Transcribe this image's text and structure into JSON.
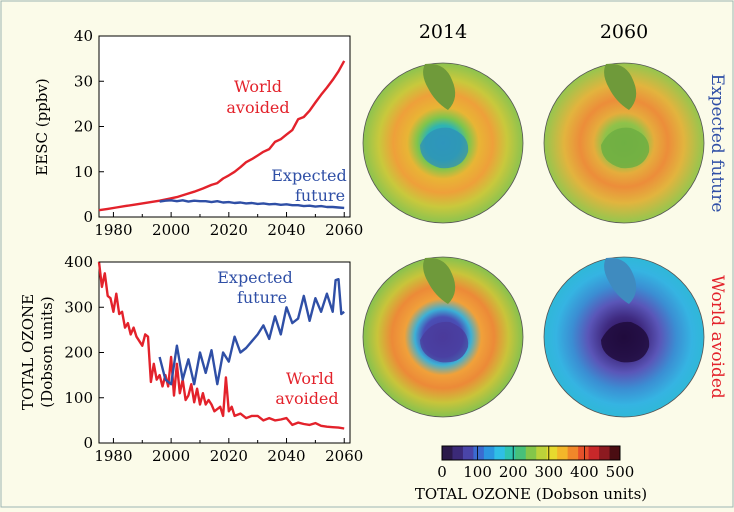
{
  "colors": {
    "background": "#fbfbe9",
    "world_avoided": "#e3222b",
    "expected_future": "#2f4fa6",
    "axis": "#000000"
  },
  "side_labels": {
    "expected_future": "Expected future",
    "world_avoided": "World avoided"
  },
  "map_years": [
    "2014",
    "2060"
  ],
  "colorbar": {
    "ticks": [
      "0",
      "100",
      "200",
      "300",
      "400",
      "500"
    ],
    "label": "TOTAL OZONE (Dobson units)",
    "colors": [
      "#2b1a4a",
      "#3b2a78",
      "#4a45a8",
      "#3b6bd0",
      "#2c96e0",
      "#2fbfe6",
      "#2fc4b0",
      "#47c07a",
      "#84c64a",
      "#bcd23a",
      "#e7da2e",
      "#f3b62a",
      "#f0872a",
      "#e6502a",
      "#c8282a",
      "#8c1a20",
      "#4a0d12"
    ]
  },
  "chart_data": [
    {
      "type": "line",
      "xlabel": "",
      "ylabel": "EESC (ppbv)",
      "xlim": [
        1975,
        2062
      ],
      "ylim": [
        0,
        40
      ],
      "xticks": [
        "1980",
        "2000",
        "2020",
        "2040",
        "2060"
      ],
      "yticks": [
        "0",
        "10",
        "20",
        "30",
        "40"
      ],
      "annotations": [
        {
          "text": "World",
          "series": "world_avoided"
        },
        {
          "text": "avoided",
          "series": "world_avoided"
        },
        {
          "text": "Expected",
          "series": "expected_future"
        },
        {
          "text": "future",
          "series": "expected_future"
        }
      ],
      "series": [
        {
          "name": "World avoided",
          "x": [
            1975,
            1978,
            1981,
            1984,
            1987,
            1990,
            1993,
            1996,
            1999,
            2002,
            2005,
            2008,
            2011,
            2014,
            2016,
            2018,
            2020,
            2022,
            2024,
            2026,
            2028,
            2030,
            2032,
            2034,
            2036,
            2038,
            2040,
            2042,
            2044,
            2046,
            2048,
            2050,
            2052,
            2054,
            2056,
            2058,
            2060
          ],
          "y": [
            1.5,
            1.8,
            2.1,
            2.4,
            2.7,
            3.0,
            3.3,
            3.6,
            4.0,
            4.4,
            5.0,
            5.6,
            6.3,
            7.1,
            7.5,
            8.5,
            9.2,
            10.0,
            11.0,
            12.1,
            12.8,
            13.6,
            14.4,
            15.0,
            16.6,
            17.2,
            18.2,
            19.2,
            21.6,
            22.1,
            23.5,
            25.3,
            27.0,
            28.6,
            30.3,
            32.2,
            34.5
          ]
        },
        {
          "name": "Expected future",
          "x": [
            1996,
            1998,
            2000,
            2002,
            2004,
            2006,
            2008,
            2010,
            2012,
            2014,
            2016,
            2018,
            2020,
            2022,
            2024,
            2026,
            2028,
            2030,
            2032,
            2034,
            2036,
            2038,
            2040,
            2042,
            2044,
            2046,
            2048,
            2050,
            2052,
            2054,
            2056,
            2058,
            2060
          ],
          "y": [
            3.4,
            3.6,
            3.7,
            3.5,
            3.7,
            3.4,
            3.6,
            3.5,
            3.5,
            3.3,
            3.5,
            3.2,
            3.3,
            3.1,
            3.2,
            3.0,
            3.1,
            2.9,
            3.0,
            2.8,
            2.9,
            2.7,
            2.8,
            2.6,
            2.6,
            2.4,
            2.5,
            2.3,
            2.4,
            2.2,
            2.2,
            2.1,
            2.0
          ]
        }
      ]
    },
    {
      "type": "line",
      "xlabel": "",
      "ylabel": "TOTAL OZONE",
      "ylabel_sub": "(Dobson units)",
      "xlim": [
        1975,
        2062
      ],
      "ylim": [
        0,
        400
      ],
      "xticks": [
        "1980",
        "2000",
        "2020",
        "2040",
        "2060"
      ],
      "yticks": [
        "0",
        "100",
        "200",
        "300",
        "400"
      ],
      "annotations": [
        {
          "text": "Expected",
          "series": "expected_future"
        },
        {
          "text": "future",
          "series": "expected_future"
        },
        {
          "text": "World",
          "series": "world_avoided"
        },
        {
          "text": "avoided",
          "series": "world_avoided"
        }
      ],
      "series": [
        {
          "name": "World avoided",
          "x": [
            1975,
            1976,
            1977,
            1978,
            1979,
            1980,
            1981,
            1982,
            1983,
            1984,
            1985,
            1986,
            1987,
            1988,
            1989,
            1990,
            1991,
            1992,
            1993,
            1994,
            1995,
            1996,
            1997,
            1998,
            1999,
            2000,
            2001,
            2002,
            2003,
            2004,
            2005,
            2006,
            2007,
            2008,
            2009,
            2010,
            2011,
            2012,
            2013,
            2014,
            2015,
            2016,
            2017,
            2018,
            2019,
            2020,
            2021,
            2022,
            2024,
            2026,
            2028,
            2030,
            2032,
            2034,
            2036,
            2038,
            2040,
            2042,
            2044,
            2046,
            2048,
            2050,
            2052,
            2054,
            2056,
            2058,
            2060
          ],
          "y": [
            400,
            345,
            375,
            325,
            320,
            290,
            330,
            285,
            290,
            255,
            265,
            240,
            255,
            235,
            225,
            215,
            240,
            235,
            135,
            175,
            140,
            150,
            125,
            150,
            125,
            190,
            105,
            175,
            110,
            140,
            95,
            105,
            130,
            90,
            120,
            85,
            110,
            85,
            95,
            85,
            70,
            75,
            80,
            60,
            145,
            70,
            80,
            60,
            65,
            55,
            60,
            60,
            50,
            55,
            50,
            52,
            55,
            40,
            45,
            42,
            40,
            44,
            38,
            36,
            35,
            34,
            32
          ]
        },
        {
          "name": "Expected future",
          "x": [
            1996,
            1998,
            2000,
            2002,
            2004,
            2006,
            2008,
            2010,
            2012,
            2014,
            2016,
            2018,
            2020,
            2022,
            2024,
            2026,
            2028,
            2030,
            2032,
            2034,
            2036,
            2038,
            2040,
            2042,
            2044,
            2046,
            2048,
            2050,
            2052,
            2054,
            2056,
            2057,
            2058,
            2059,
            2060
          ],
          "y": [
            190,
            140,
            130,
            215,
            140,
            185,
            130,
            200,
            155,
            205,
            130,
            200,
            180,
            235,
            200,
            210,
            225,
            240,
            260,
            230,
            280,
            240,
            300,
            265,
            275,
            325,
            270,
            320,
            290,
            330,
            290,
            360,
            362,
            285,
            290
          ]
        }
      ]
    }
  ]
}
